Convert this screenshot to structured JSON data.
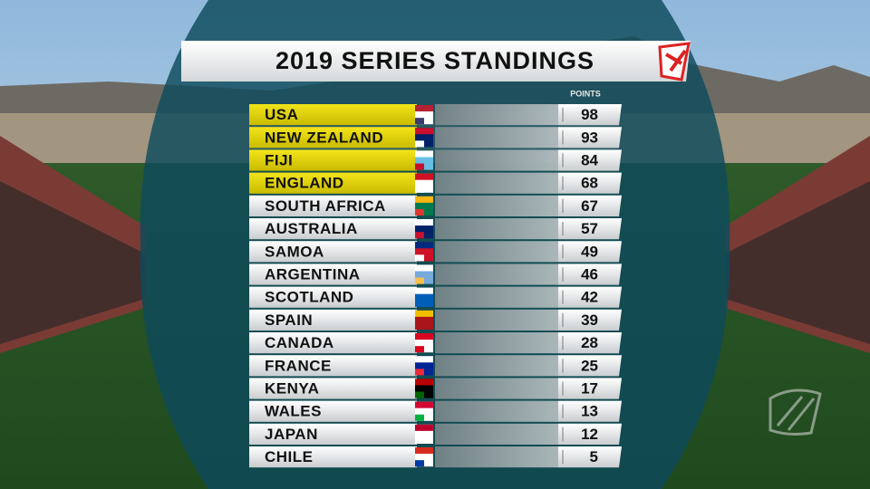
{
  "title": "2019 SERIES STANDINGS",
  "table": {
    "header": "POINTS",
    "rows": [
      [
        "USA",
        98
      ],
      [
        "NEW ZEALAND",
        93
      ],
      [
        "FIJI",
        84
      ],
      [
        "ENGLAND",
        68
      ],
      [
        "SOUTH AFRICA",
        67
      ],
      [
        "AUSTRALIA",
        57
      ],
      [
        "SAMOA",
        49
      ],
      [
        "ARGENTINA",
        46
      ],
      [
        "SCOTLAND",
        42
      ],
      [
        "SPAIN",
        39
      ],
      [
        "CANADA",
        28
      ],
      [
        "FRANCE",
        25
      ],
      [
        "KENYA",
        17
      ],
      [
        "WALES",
        13
      ],
      [
        "JAPAN",
        12
      ],
      [
        "CHILE",
        5
      ]
    ]
  }
}
